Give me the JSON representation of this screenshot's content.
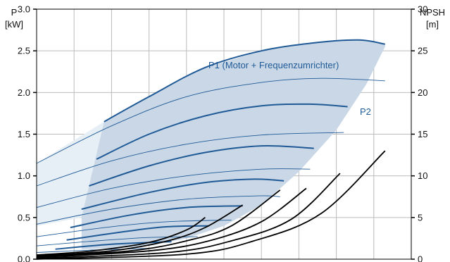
{
  "page": {
    "top_caption": ""
  },
  "chart_data": {
    "type": "line",
    "title": "",
    "left_axis": {
      "label_top": "P",
      "label_unit": "[kW]",
      "ticks": [
        "3.0",
        "2.5",
        "2.0",
        "1.5",
        "1.0",
        "0.5",
        "0.0"
      ],
      "ylim": [
        0,
        3.0
      ]
    },
    "right_axis": {
      "label_top": "NPSH",
      "label_unit": "[m]",
      "ticks": [
        "30",
        "25",
        "20",
        "15",
        "10",
        "5",
        "0"
      ],
      "ylim": [
        0,
        30
      ]
    },
    "xlim": [
      0,
      10
    ],
    "x_gridlines": 10,
    "grid": true,
    "colors": {
      "envelope_fill": "#c9d7e6",
      "envelope_fill_left": "#e6eef6",
      "p1": "#1f5a96",
      "p2": "#1f5a96",
      "npsh": "#000000",
      "grid": "#bbbbbb"
    },
    "annotations": {
      "p1": "P1 (Motor + Frequenzumrichter)",
      "p2": "P2"
    },
    "envelope": {
      "upper": [
        [
          1.8,
          1.65
        ],
        [
          3,
          1.95
        ],
        [
          4.5,
          2.3
        ],
        [
          6,
          2.5
        ],
        [
          7.5,
          2.6
        ],
        [
          8.6,
          2.63
        ],
        [
          9.3,
          2.58
        ]
      ],
      "lower": [
        [
          9.3,
          2.55
        ],
        [
          8.8,
          2.1
        ],
        [
          8,
          1.55
        ],
        [
          7,
          1.05
        ],
        [
          6,
          0.65
        ],
        [
          5,
          0.4
        ],
        [
          4,
          0.25
        ],
        [
          3,
          0.16
        ],
        [
          2,
          0.13
        ],
        [
          1.2,
          0.12
        ],
        [
          1.2,
          0.5
        ],
        [
          1.8,
          1.65
        ]
      ]
    },
    "envelope_left": [
      [
        0,
        1.15
      ],
      [
        1.8,
        1.65
      ],
      [
        1.2,
        0.5
      ],
      [
        0,
        0.4
      ]
    ],
    "p1_curves": [
      [
        [
          1.8,
          1.65
        ],
        [
          3,
          1.95
        ],
        [
          4.5,
          2.3
        ],
        [
          6,
          2.5
        ],
        [
          7.5,
          2.6
        ],
        [
          8.6,
          2.63
        ],
        [
          9.3,
          2.58
        ]
      ],
      [
        [
          1.6,
          1.2
        ],
        [
          3,
          1.5
        ],
        [
          4.5,
          1.72
        ],
        [
          6,
          1.84
        ],
        [
          7.3,
          1.86
        ],
        [
          8.3,
          1.83
        ]
      ],
      [
        [
          1.4,
          0.88
        ],
        [
          3,
          1.12
        ],
        [
          4.5,
          1.28
        ],
        [
          6,
          1.36
        ],
        [
          7.4,
          1.33
        ]
      ],
      [
        [
          1.2,
          0.6
        ],
        [
          3,
          0.8
        ],
        [
          4.5,
          0.92
        ],
        [
          5.8,
          0.96
        ],
        [
          6.6,
          0.94
        ]
      ],
      [
        [
          0.9,
          0.38
        ],
        [
          2.5,
          0.53
        ],
        [
          4,
          0.62
        ],
        [
          5.5,
          0.64
        ]
      ],
      [
        [
          0.8,
          0.23
        ],
        [
          2.5,
          0.34
        ],
        [
          3.5,
          0.39
        ],
        [
          4.6,
          0.4
        ]
      ],
      [
        [
          0.5,
          0.12
        ],
        [
          2,
          0.18
        ],
        [
          3.6,
          0.21
        ]
      ]
    ],
    "p2_curves": [
      [
        [
          0,
          1.15
        ],
        [
          2,
          1.6
        ],
        [
          4,
          1.95
        ],
        [
          6,
          2.12
        ],
        [
          7.6,
          2.17
        ],
        [
          9.3,
          2.14
        ]
      ],
      [
        [
          0,
          0.88
        ],
        [
          2,
          1.18
        ],
        [
          4,
          1.38
        ],
        [
          6,
          1.49
        ],
        [
          8.2,
          1.52
        ]
      ],
      [
        [
          0,
          0.62
        ],
        [
          2,
          0.85
        ],
        [
          4,
          1.0
        ],
        [
          6,
          1.08
        ],
        [
          7.3,
          1.08
        ]
      ],
      [
        [
          0,
          0.42
        ],
        [
          2,
          0.6
        ],
        [
          4,
          0.72
        ],
        [
          5.9,
          0.76
        ],
        [
          6.5,
          0.75
        ]
      ],
      [
        [
          0,
          0.27
        ],
        [
          2,
          0.39
        ],
        [
          3.5,
          0.45
        ],
        [
          5.2,
          0.47
        ]
      ],
      [
        [
          0,
          0.16
        ],
        [
          1.6,
          0.22
        ],
        [
          3,
          0.26
        ],
        [
          4.3,
          0.27
        ]
      ],
      [
        [
          0,
          0.08
        ],
        [
          1.5,
          0.11
        ],
        [
          3,
          0.13
        ]
      ]
    ],
    "npsh_curves": [
      [
        [
          0,
          0.05
        ],
        [
          1.5,
          0.1
        ],
        [
          3,
          0.2
        ],
        [
          4,
          0.35
        ],
        [
          4.5,
          0.5
        ]
      ],
      [
        [
          0,
          0.04
        ],
        [
          2,
          0.1
        ],
        [
          3.5,
          0.22
        ],
        [
          4.5,
          0.38
        ],
        [
          5.5,
          0.65
        ]
      ],
      [
        [
          0,
          0.03
        ],
        [
          2.5,
          0.1
        ],
        [
          4,
          0.22
        ],
        [
          5.2,
          0.4
        ],
        [
          6.5,
          0.83
        ]
      ],
      [
        [
          0,
          0.02
        ],
        [
          3,
          0.1
        ],
        [
          4.6,
          0.22
        ],
        [
          6,
          0.45
        ],
        [
          7.2,
          0.85
        ]
      ],
      [
        [
          0,
          0.01
        ],
        [
          3.5,
          0.08
        ],
        [
          5.2,
          0.22
        ],
        [
          6.8,
          0.48
        ],
        [
          8.1,
          1.03
        ]
      ],
      [
        [
          0,
          0.0
        ],
        [
          4,
          0.06
        ],
        [
          5.8,
          0.22
        ],
        [
          7.6,
          0.55
        ],
        [
          9.3,
          1.3
        ]
      ]
    ]
  }
}
